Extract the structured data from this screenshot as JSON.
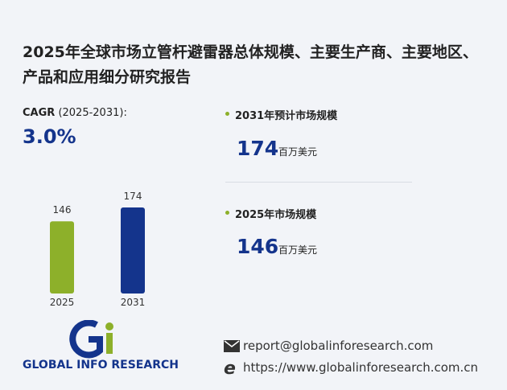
{
  "title": "2025年全球市场立管杆避雷器总体规模、主要生产商、主要地区、产品和应用细分研究报告",
  "cagr": {
    "label": "CAGR",
    "period": "(2025-2031):",
    "value": "3.0%"
  },
  "chart_data": {
    "type": "bar",
    "categories": [
      "2025",
      "2031"
    ],
    "values": [
      146,
      174
    ],
    "colors": [
      "#8db02a",
      "#14348c"
    ]
  },
  "stats": [
    {
      "label": "2031年预计市场规模",
      "value": 174,
      "unit": "百万美元"
    },
    {
      "label": "2025年市场规模",
      "value": 146,
      "unit": "百万美元"
    }
  ],
  "footer": {
    "logo": "GLOBAL INFO RESEARCH",
    "email": "report@globalinforesearch.com",
    "website": "https://www.globalinforesearch.com.cn"
  }
}
